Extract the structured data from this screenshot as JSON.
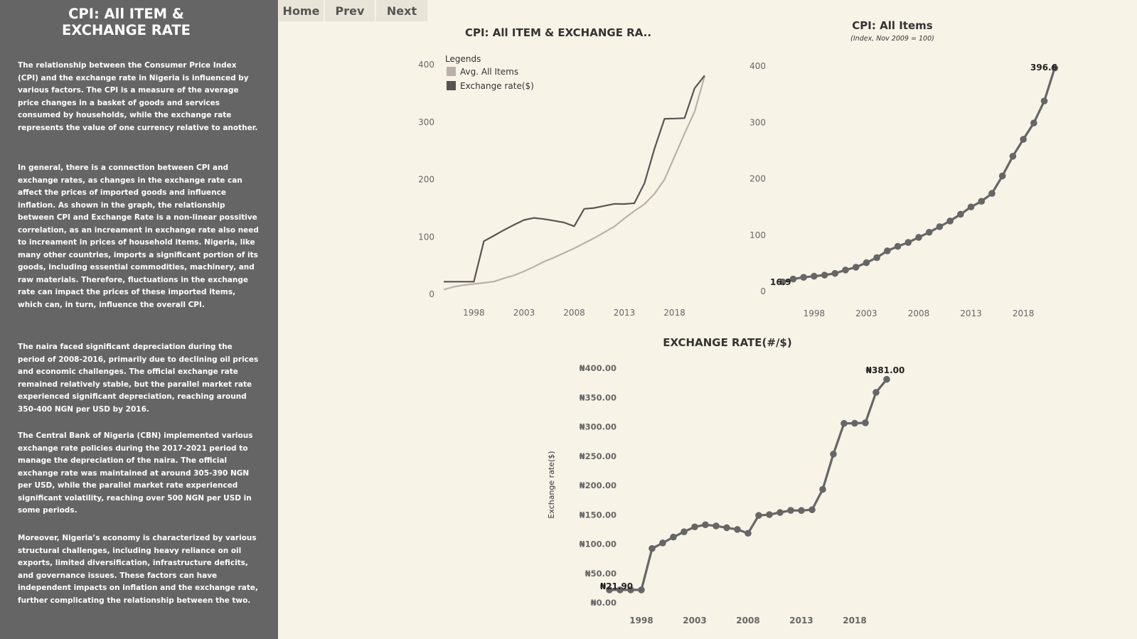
{
  "sidebar": {
    "title": "CPI: All ITEM &\nEXCHANGE RATE",
    "paragraphs": [
      "The relationship between the Consumer Price Index (CPI) and the exchange rate in Nigeria is influenced by various factors. The CPI is a measure of the average price changes in a basket of goods and services consumed by households, while the exchange rate represents the value of one currency relative to another.",
      "In general, there is a connection between CPI and exchange rates, as changes in the exchange rate can affect the prices of imported goods and influence inflation. As shown in the graph, the relationship between CPI and Exchange Rate is a non-linear possitive correlation, as an increament in exchange rate also need to increament in prices of household items.  Nigeria, like many other countries, imports a significant portion of its goods, including essential commodities, machinery, and raw materials. Therefore, fluctuations in the exchange rate can impact the prices of these imported items, which can, in turn, influence the overall CPI.",
      "The naira faced significant depreciation during the period of 2008-2016, primarily due to declining oil prices and economic challenges. The official exchange rate remained relatively stable, but the parallel market rate experienced significant depreciation, reaching around 350-400 NGN per USD by 2016.",
      "The Central Bank of Nigeria (CBN) implemented various exchange rate policies during the 2017-2021 period to manage the depreciation of the naira. The official exchange rate was maintained at around 305-390 NGN per USD, while the parallel market rate experienced significant volatility, reaching over 500 NGN per USD in some periods.",
      "Moreover, Nigeria’s economy is characterized by various structural challenges, including heavy reliance on oil exports, limited diversification, infrastructure deficits, and governance issues. These factors can have independent impacts on inflation and the exchange rate, further complicating the relationship between the two."
    ]
  },
  "nav": {
    "home": "Home",
    "prev": "Prev",
    "next": "Next"
  },
  "colors": {
    "avg_cpi": "#bab1aa",
    "exchange": "#5a5353",
    "markers": "#666666",
    "sidebar": "#666565",
    "background": "#f8f3e7"
  },
  "chart_data": [
    {
      "type": "line",
      "title": "CPI: All ITEM & EXCHANGE RA..",
      "legend_title": "Legends",
      "legend_position": "top-left",
      "x": [
        1995,
        1996,
        1997,
        1998,
        1999,
        2000,
        2001,
        2002,
        2003,
        2004,
        2005,
        2006,
        2007,
        2008,
        2009,
        2010,
        2011,
        2012,
        2013,
        2014,
        2015,
        2016,
        2017,
        2018,
        2019,
        2020,
        2021
      ],
      "series": [
        {
          "name": "Avg. All Items",
          "values": [
            8,
            13,
            16,
            18,
            20,
            22,
            28,
            33,
            40,
            48,
            57,
            64,
            72,
            80,
            89,
            98,
            108,
            118,
            132,
            145,
            157,
            175,
            200,
            240,
            280,
            318,
            380
          ]
        },
        {
          "name": "Exchange rate($)",
          "values": [
            21.9,
            21.9,
            21.9,
            21.9,
            92.5,
            102,
            112,
            121,
            129.4,
            133,
            131,
            128,
            125,
            118.5,
            148.9,
            150.3,
            153.9,
            157.5,
            157.3,
            158.6,
            193.3,
            253.5,
            305.8,
            306.1,
            306.9,
            358.8,
            381
          ]
        }
      ],
      "xticks": [
        1998,
        2003,
        2008,
        2013,
        2018
      ],
      "yticks": [
        0,
        100,
        200,
        300,
        400
      ],
      "xlim": [
        1994,
        2022
      ],
      "ylim": [
        0,
        400
      ]
    },
    {
      "type": "line",
      "title": "CPI: All Items",
      "subtitle": "(Index, Nov 2009 = 100)",
      "x": [
        1995,
        1996,
        1997,
        1998,
        1999,
        2000,
        2001,
        2002,
        2003,
        2004,
        2005,
        2006,
        2007,
        2008,
        2009,
        2010,
        2011,
        2012,
        2013,
        2014,
        2015,
        2016,
        2017,
        2018,
        2019,
        2020,
        2021
      ],
      "series": [
        {
          "values": [
            16.9,
            22,
            25,
            27,
            29,
            32,
            38,
            43,
            51,
            60,
            72,
            80,
            87,
            96,
            105,
            115,
            125,
            137,
            150,
            160,
            174,
            205,
            240,
            270,
            299,
            338,
            396.6
          ]
        }
      ],
      "annotations": [
        "16.9",
        "396.6"
      ],
      "xticks": [
        1998,
        2003,
        2008,
        2013,
        2018
      ],
      "yticks": [
        0,
        100,
        200,
        300,
        400
      ],
      "xlim": [
        1994,
        2022
      ],
      "ylim": [
        0,
        400
      ]
    },
    {
      "type": "line",
      "title": "EXCHANGE RATE(#/$)",
      "ylabel": "Exchange rate($)",
      "x": [
        1995,
        1996,
        1997,
        1998,
        1999,
        2000,
        2001,
        2002,
        2003,
        2004,
        2005,
        2006,
        2007,
        2008,
        2009,
        2010,
        2011,
        2012,
        2013,
        2014,
        2015,
        2016,
        2017,
        2018,
        2019,
        2020,
        2021
      ],
      "series": [
        {
          "values": [
            21.9,
            21.9,
            21.9,
            21.9,
            92.5,
            102,
            112,
            121,
            129.4,
            133,
            131,
            128,
            125,
            118.5,
            148.9,
            150.3,
            153.9,
            157.5,
            157.3,
            158.6,
            193.3,
            253.5,
            305.8,
            306.1,
            306.9,
            358.8,
            381
          ]
        }
      ],
      "annotations": [
        "₦21.90",
        "₦381.00"
      ],
      "xticks": [
        1998,
        2003,
        2008,
        2013,
        2018
      ],
      "yticks": [
        0,
        50,
        100,
        150,
        200,
        250,
        300,
        350,
        400
      ],
      "ytick_labels": [
        "₦0.00",
        "₦50.00",
        "₦100.00",
        "₦150.00",
        "₦200.00",
        "₦250.00",
        "₦300.00",
        "₦350.00",
        "₦400.00"
      ],
      "xlim": [
        1994,
        2022
      ],
      "ylim": [
        0,
        400
      ]
    }
  ]
}
